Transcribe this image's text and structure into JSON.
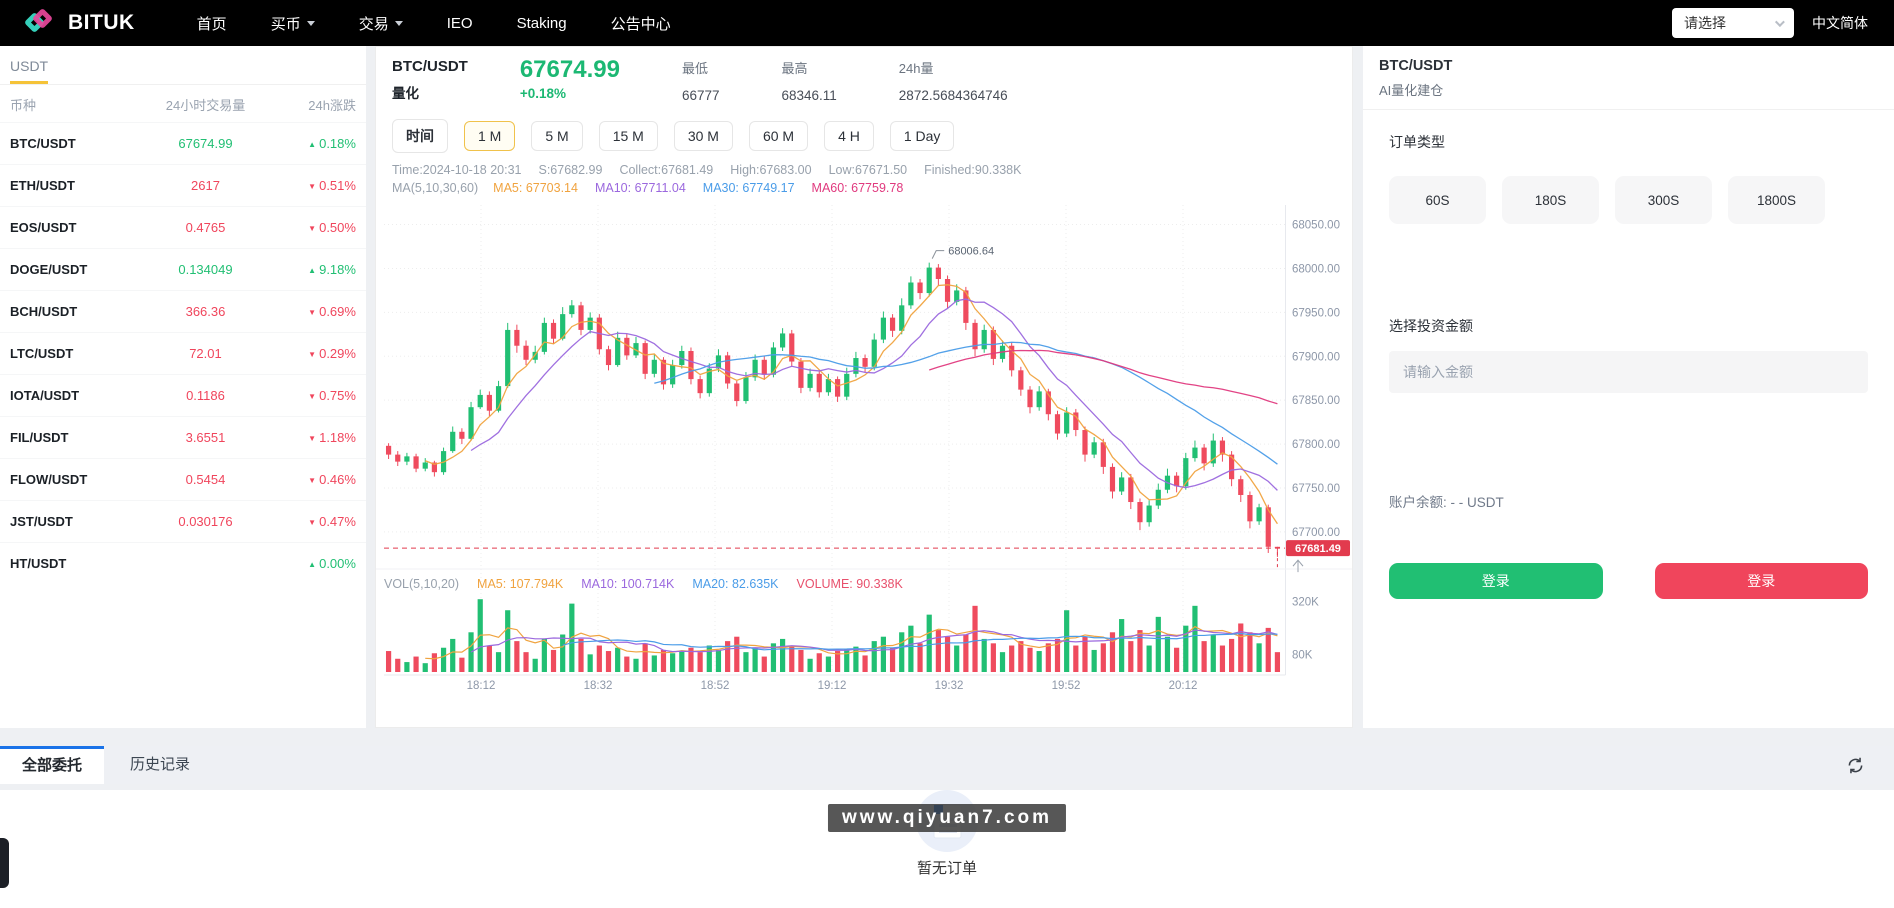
{
  "nav": {
    "brand": "BITUK",
    "items": [
      {
        "label": "首页",
        "dropdown": false
      },
      {
        "label": "买币",
        "dropdown": true
      },
      {
        "label": "交易",
        "dropdown": true
      },
      {
        "label": "IEO",
        "dropdown": false
      },
      {
        "label": "Staking",
        "dropdown": false
      },
      {
        "label": "公告中心",
        "dropdown": false
      }
    ],
    "language_select": "请选择",
    "language_label": "中文简体"
  },
  "sidebar": {
    "tab": "USDT",
    "columns": [
      "币种",
      "24小时交易量",
      "24h涨跌"
    ],
    "rows": [
      {
        "pair": "BTC/USDT",
        "volume": "67674.99",
        "volume_dir": "up",
        "change": "0.18%",
        "dir": "up"
      },
      {
        "pair": "ETH/USDT",
        "volume": "2617",
        "volume_dir": "down",
        "change": "0.51%",
        "dir": "down"
      },
      {
        "pair": "EOS/USDT",
        "volume": "0.4765",
        "volume_dir": "down",
        "change": "0.50%",
        "dir": "down"
      },
      {
        "pair": "DOGE/USDT",
        "volume": "0.134049",
        "volume_dir": "up",
        "change": "9.18%",
        "dir": "up"
      },
      {
        "pair": "BCH/USDT",
        "volume": "366.36",
        "volume_dir": "down",
        "change": "0.69%",
        "dir": "down"
      },
      {
        "pair": "LTC/USDT",
        "volume": "72.01",
        "volume_dir": "down",
        "change": "0.29%",
        "dir": "down"
      },
      {
        "pair": "IOTA/USDT",
        "volume": "0.1186",
        "volume_dir": "down",
        "change": "0.75%",
        "dir": "down"
      },
      {
        "pair": "FIL/USDT",
        "volume": "3.6551",
        "volume_dir": "down",
        "change": "1.18%",
        "dir": "down"
      },
      {
        "pair": "FLOW/USDT",
        "volume": "0.5454",
        "volume_dir": "down",
        "change": "0.46%",
        "dir": "down"
      },
      {
        "pair": "JST/USDT",
        "volume": "0.030176",
        "volume_dir": "down",
        "change": "0.47%",
        "dir": "down"
      },
      {
        "pair": "HT/USDT",
        "volume": "",
        "volume_dir": "up",
        "change": "0.00%",
        "dir": "up"
      }
    ]
  },
  "ticker": {
    "pair": "BTC/USDT",
    "mode": "量化",
    "price": "67674.99",
    "change": "+0.18%",
    "stats": [
      {
        "label": "最低",
        "value": "66777"
      },
      {
        "label": "最高",
        "value": "68346.11"
      },
      {
        "label": "24h量",
        "value": "2872.5684364746"
      }
    ]
  },
  "intervals": {
    "label": "时间",
    "options": [
      "1 M",
      "5 M",
      "15 M",
      "30 M",
      "60 M",
      "4 H",
      "1 Day"
    ],
    "active": "1 M"
  },
  "status_parts": [
    "Time:2024-10-18 20:31",
    "S:67682.99",
    "Collect:67681.49",
    "High:67683.00",
    "Low:67671.50",
    "Finished:90.338K"
  ],
  "ma_legend": {
    "label": "MA(5,10,30,60)",
    "items": [
      {
        "text": "MA5: 67703.14",
        "color": "#f0a33f"
      },
      {
        "text": "MA10: 67711.04",
        "color": "#9b68de"
      },
      {
        "text": "MA30: 67749.17",
        "color": "#4a9ce8"
      },
      {
        "text": "MA60: 67759.78",
        "color": "#e0397e"
      }
    ]
  },
  "vol_legend": {
    "label": "VOL(5,10,20)",
    "items": [
      {
        "text": "MA5: 107.794K",
        "color": "#f0a33f"
      },
      {
        "text": "MA10: 100.714K",
        "color": "#9b68de"
      },
      {
        "text": "MA20: 82.635K",
        "color": "#4a9ce8"
      },
      {
        "text": "VOLUME: 90.338K",
        "color": "#e8506c"
      }
    ]
  },
  "chart_data": {
    "type": "candlestick",
    "title": "BTC/USDT 1M",
    "x_ticks": [
      "18:12",
      "18:32",
      "18:52",
      "19:12",
      "19:32",
      "19:52",
      "20:12"
    ],
    "y_ticks": [
      "68050.00",
      "68000.00",
      "67950.00",
      "67900.00",
      "67850.00",
      "67800.00",
      "67750.00",
      "67700.00"
    ],
    "y_range": [
      67660,
      68070
    ],
    "vol_y_ticks": [
      "320K",
      "80K"
    ],
    "vol_range": [
      0,
      340
    ],
    "last_price": "67681.49",
    "peak_label": "68006.64",
    "candles": [
      [
        67798,
        67788,
        67783,
        67801,
        95
      ],
      [
        67788,
        67780,
        67775,
        67792,
        60
      ],
      [
        67780,
        67786,
        67776,
        67790,
        45
      ],
      [
        67786,
        67772,
        67768,
        67789,
        70
      ],
      [
        67772,
        67779,
        67769,
        67784,
        40
      ],
      [
        67779,
        67768,
        67763,
        67781,
        85
      ],
      [
        67768,
        67792,
        67765,
        67796,
        110
      ],
      [
        67792,
        67814,
        67790,
        67820,
        150
      ],
      [
        67814,
        67806,
        67800,
        67818,
        65
      ],
      [
        67806,
        67842,
        67804,
        67848,
        180
      ],
      [
        67842,
        67856,
        67840,
        67862,
        330
      ],
      [
        67856,
        67838,
        67832,
        67860,
        120
      ],
      [
        67838,
        67866,
        67836,
        67872,
        90
      ],
      [
        67866,
        67930,
        67864,
        67938,
        280
      ],
      [
        67930,
        67912,
        67904,
        67936,
        140
      ],
      [
        67912,
        67896,
        67890,
        67918,
        90
      ],
      [
        67896,
        67905,
        67892,
        67912,
        60
      ],
      [
        67905,
        67938,
        67902,
        67944,
        150
      ],
      [
        67938,
        67920,
        67914,
        67942,
        100
      ],
      [
        67920,
        67948,
        67918,
        67956,
        170
      ],
      [
        67948,
        67958,
        67944,
        67964,
        310
      ],
      [
        67958,
        67930,
        67924,
        67962,
        150
      ],
      [
        67930,
        67944,
        67926,
        67950,
        80
      ],
      [
        67944,
        67908,
        67902,
        67948,
        120
      ],
      [
        67908,
        67890,
        67884,
        67912,
        95
      ],
      [
        67890,
        67921,
        67888,
        67928,
        110
      ],
      [
        67921,
        67901,
        67896,
        67926,
        70
      ],
      [
        67901,
        67915,
        67898,
        67922,
        60
      ],
      [
        67915,
        67880,
        67874,
        67918,
        130
      ],
      [
        67880,
        67896,
        67876,
        67902,
        75
      ],
      [
        67896,
        67868,
        67862,
        67899,
        100
      ],
      [
        67868,
        67890,
        67864,
        67896,
        85
      ],
      [
        67890,
        67906,
        67886,
        67912,
        95
      ],
      [
        67906,
        67874,
        67868,
        67910,
        110
      ],
      [
        67874,
        67858,
        67852,
        67878,
        90
      ],
      [
        67858,
        67886,
        67854,
        67892,
        120
      ],
      [
        67886,
        67901,
        67882,
        67908,
        100
      ],
      [
        67901,
        67869,
        67863,
        67905,
        140
      ],
      [
        67869,
        67849,
        67843,
        67872,
        160
      ],
      [
        67849,
        67876,
        67846,
        67882,
        90
      ],
      [
        67876,
        67896,
        67872,
        67902,
        110
      ],
      [
        67896,
        67879,
        67873,
        67900,
        70
      ],
      [
        67879,
        67910,
        67876,
        67916,
        130
      ],
      [
        67910,
        67926,
        67906,
        67932,
        150
      ],
      [
        67926,
        67894,
        67888,
        67930,
        120
      ],
      [
        67894,
        67864,
        67858,
        67898,
        100
      ],
      [
        67864,
        67880,
        67860,
        67886,
        60
      ],
      [
        67880,
        67859,
        67853,
        67884,
        85
      ],
      [
        67859,
        67874,
        67855,
        67880,
        70
      ],
      [
        67874,
        67854,
        67848,
        67877,
        95
      ],
      [
        67854,
        67880,
        67850,
        67887,
        105
      ],
      [
        67880,
        67898,
        67876,
        67905,
        115
      ],
      [
        67898,
        67888,
        67882,
        67902,
        75
      ],
      [
        67888,
        67919,
        67884,
        67926,
        140
      ],
      [
        67919,
        67944,
        67915,
        67951,
        160
      ],
      [
        67944,
        67929,
        67922,
        67948,
        110
      ],
      [
        67929,
        67958,
        67925,
        67966,
        180
      ],
      [
        67958,
        67984,
        67954,
        67991,
        210
      ],
      [
        67984,
        67972,
        67965,
        67988,
        130
      ],
      [
        67972,
        68001,
        67968,
        68006.64,
        260
      ],
      [
        68001,
        67988,
        67980,
        68005,
        190
      ],
      [
        67988,
        67962,
        67955,
        67992,
        160
      ],
      [
        67962,
        67975,
        67958,
        67982,
        120
      ],
      [
        67975,
        67938,
        67930,
        67979,
        170
      ],
      [
        67938,
        67908,
        67900,
        67942,
        300
      ],
      [
        67908,
        67930,
        67904,
        67936,
        150
      ],
      [
        67930,
        67897,
        67890,
        67934,
        130
      ],
      [
        67897,
        67912,
        67893,
        67918,
        90
      ],
      [
        67912,
        67884,
        67877,
        67916,
        120
      ],
      [
        67884,
        67862,
        67855,
        67888,
        140
      ],
      [
        67862,
        67842,
        67835,
        67866,
        110
      ],
      [
        67842,
        67860,
        67838,
        67866,
        95
      ],
      [
        67860,
        67834,
        67827,
        67863,
        130
      ],
      [
        67834,
        67812,
        67805,
        67838,
        150
      ],
      [
        67812,
        67836,
        67808,
        67842,
        280
      ],
      [
        67836,
        67816,
        67809,
        67840,
        120
      ],
      [
        67816,
        67788,
        67780,
        67820,
        160
      ],
      [
        67788,
        67802,
        67784,
        67808,
        100
      ],
      [
        67802,
        67774,
        67766,
        67806,
        130
      ],
      [
        67774,
        67746,
        67738,
        67778,
        180
      ],
      [
        67746,
        67762,
        67742,
        67768,
        240
      ],
      [
        67762,
        67734,
        67726,
        67766,
        140
      ],
      [
        67734,
        67711,
        67702,
        67738,
        190
      ],
      [
        67711,
        67730,
        67706,
        67736,
        120
      ],
      [
        67730,
        67748,
        67726,
        67755,
        250
      ],
      [
        67748,
        67764,
        67744,
        67772,
        160
      ],
      [
        67764,
        67752,
        67745,
        67768,
        110
      ],
      [
        67752,
        67784,
        67748,
        67790,
        210
      ],
      [
        67784,
        67796,
        67780,
        67804,
        300
      ],
      [
        67796,
        67778,
        67770,
        67800,
        140
      ],
      [
        67778,
        67804,
        67774,
        67812,
        170
      ],
      [
        67804,
        67788,
        67780,
        67808,
        120
      ],
      [
        67788,
        67760,
        67752,
        67792,
        150
      ],
      [
        67760,
        67742,
        67734,
        67764,
        220
      ],
      [
        67742,
        67712,
        67704,
        67746,
        180
      ],
      [
        67712,
        67728,
        67708,
        67732,
        130
      ],
      [
        67728,
        67683,
        67676,
        67731,
        200
      ],
      [
        67682.99,
        67681.49,
        67671.5,
        67683,
        90
      ]
    ]
  },
  "panel": {
    "pair": "BTC/USDT",
    "subtitle": "AI量化建仓",
    "order_type_label": "订单类型",
    "durations": [
      "60S",
      "180S",
      "300S",
      "1800S"
    ],
    "amount_label": "选择投资金额",
    "amount_placeholder": "请输入金额",
    "balance_label": "账户余额:",
    "balance_value": "- - USDT",
    "buy_label": "登录",
    "sell_label": "登录"
  },
  "bottom": {
    "tabs": [
      "全部委托",
      "历史记录"
    ],
    "active": "全部委托",
    "empty_text": "暂无订单",
    "watermark": "www.qiyuan7.com"
  },
  "colors": {
    "up": "#21bf73",
    "down": "#ef4b5e",
    "accent_yellow": "#f5c338",
    "blue": "#1a73e8",
    "price_tag": "#e23b4e"
  }
}
